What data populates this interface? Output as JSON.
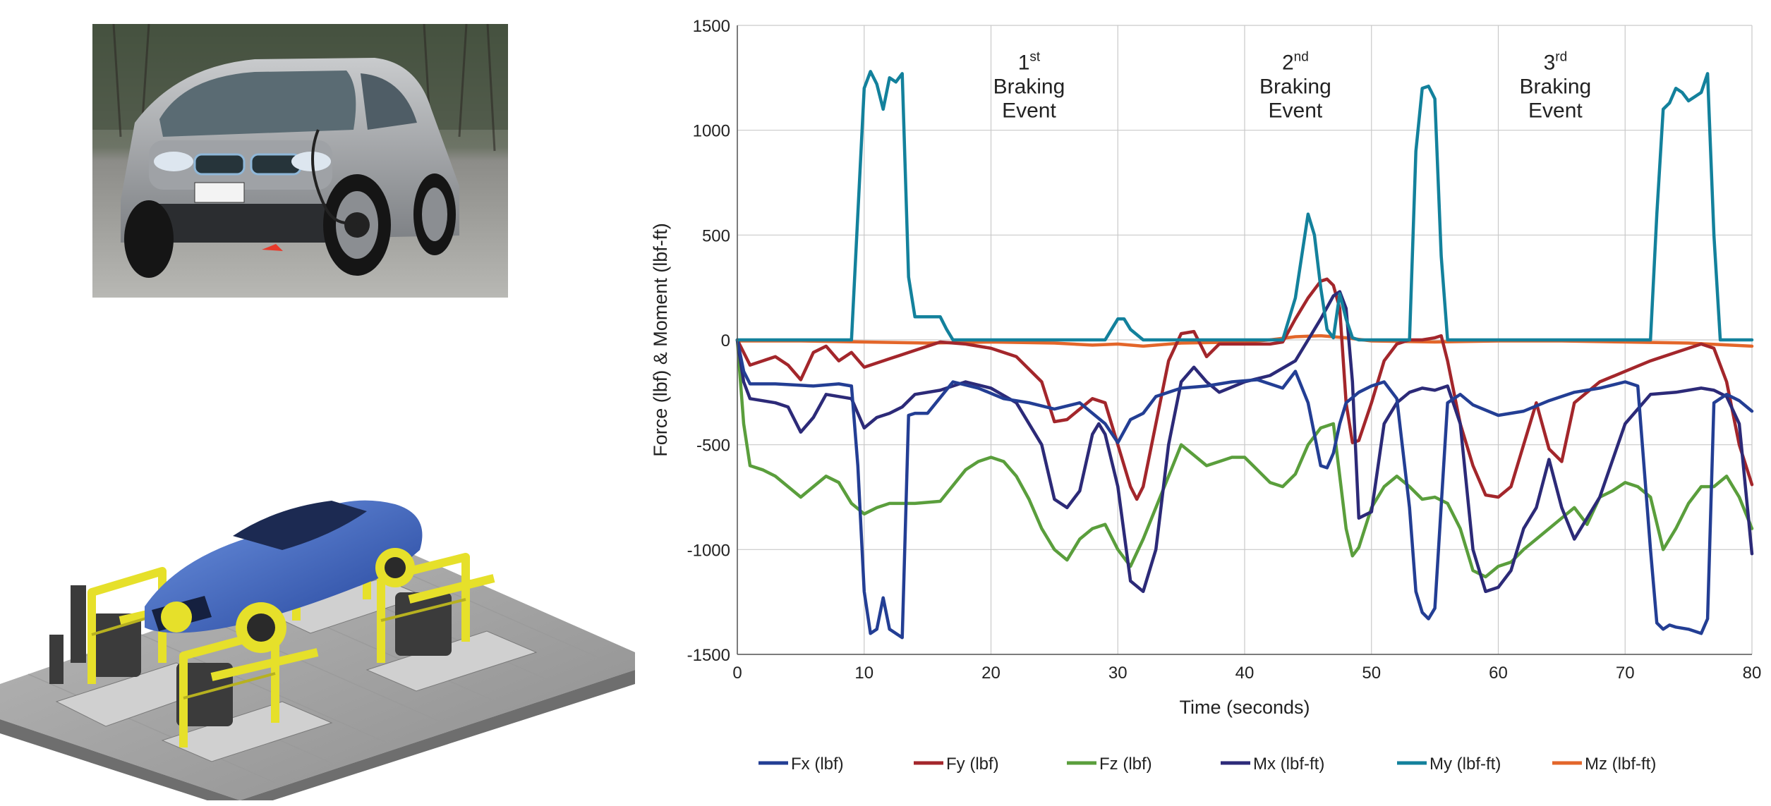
{
  "chart_data": {
    "type": "line",
    "title": "",
    "xlabel": "Time (seconds)",
    "ylabel": "Force (lbf) & Moment (lbf-ft)",
    "xlim": [
      0,
      80
    ],
    "ylim": [
      -1500,
      1500
    ],
    "x_ticks": [
      "0",
      "10",
      "20",
      "30",
      "40",
      "50",
      "60",
      "70",
      "80"
    ],
    "y_ticks": [
      "1500",
      "1000",
      "500",
      "0",
      "-500",
      "-1000",
      "-1500"
    ],
    "grid": true,
    "legend_position": "bottom",
    "annotations": [
      {
        "ordinal": "1",
        "sup": "st",
        "line2": "Braking",
        "line3": "Event",
        "x": 23,
        "y": 1250
      },
      {
        "ordinal": "2",
        "sup": "nd",
        "line2": "Braking",
        "line3": "Event",
        "x": 44,
        "y": 1250
      },
      {
        "ordinal": "3",
        "sup": "rd",
        "line2": "Braking",
        "line3": "Event",
        "x": 64.5,
        "y": 1250
      }
    ],
    "series": [
      {
        "name": "Fx (lbf)",
        "color": "#233e94",
        "x": [
          0,
          0.5,
          1,
          3,
          6,
          8,
          9,
          9.5,
          10,
          10.5,
          11,
          11.5,
          12,
          12.5,
          13,
          13.5,
          14,
          15,
          17,
          19,
          21,
          23,
          25,
          27,
          29,
          30,
          31,
          32,
          33,
          35,
          37,
          39,
          41,
          43,
          44,
          45,
          46,
          46.5,
          47,
          47.5,
          48,
          49,
          50,
          51,
          52,
          53,
          53.5,
          54,
          54.5,
          55,
          56,
          57,
          58,
          60,
          62,
          64,
          66,
          68,
          70,
          71,
          72,
          72.5,
          73,
          73.5,
          74,
          75,
          76,
          76.5,
          77,
          77.5,
          78,
          79,
          80
        ],
        "y": [
          0,
          -150,
          -210,
          -210,
          -220,
          -210,
          -220,
          -600,
          -1200,
          -1400,
          -1380,
          -1230,
          -1380,
          -1400,
          -1420,
          -360,
          -350,
          -350,
          -200,
          -230,
          -280,
          -300,
          -330,
          -300,
          -400,
          -490,
          -380,
          -350,
          -270,
          -230,
          -220,
          -200,
          -190,
          -230,
          -150,
          -300,
          -600,
          -610,
          -540,
          -400,
          -300,
          -250,
          -220,
          -200,
          -280,
          -800,
          -1200,
          -1300,
          -1330,
          -1280,
          -300,
          -260,
          -310,
          -360,
          -340,
          -290,
          -250,
          -230,
          -200,
          -220,
          -1000,
          -1350,
          -1380,
          -1360,
          -1370,
          -1380,
          -1400,
          -1330,
          -300,
          -280,
          -260,
          -290,
          -340
        ]
      },
      {
        "name": "Fy (lbf)",
        "color": "#a3262b",
        "x": [
          0,
          1,
          2,
          3,
          4,
          5,
          6,
          7,
          8,
          9,
          10,
          12,
          14,
          16,
          18,
          20,
          22,
          24,
          25,
          26,
          27,
          28,
          29,
          30,
          31,
          31.5,
          32,
          33,
          34,
          35,
          36,
          37,
          38,
          40,
          42,
          43,
          44,
          45,
          46,
          46.5,
          47,
          47.5,
          48,
          48.5,
          49,
          50,
          51,
          52,
          53,
          54,
          55,
          55.5,
          56,
          57,
          58,
          59,
          60,
          61,
          62,
          63,
          64,
          65,
          66,
          68,
          70,
          72,
          74,
          76,
          77,
          78,
          79,
          80
        ],
        "y": [
          0,
          -120,
          -100,
          -80,
          -120,
          -190,
          -60,
          -30,
          -100,
          -60,
          -130,
          -90,
          -50,
          -10,
          -20,
          -40,
          -80,
          -200,
          -390,
          -380,
          -330,
          -280,
          -300,
          -500,
          -700,
          -760,
          -700,
          -400,
          -100,
          30,
          40,
          -80,
          -20,
          -20,
          -20,
          -10,
          100,
          200,
          280,
          290,
          260,
          150,
          -300,
          -490,
          -480,
          -300,
          -100,
          -20,
          0,
          0,
          10,
          20,
          -100,
          -400,
          -600,
          -740,
          -750,
          -700,
          -500,
          -300,
          -520,
          -580,
          -300,
          -200,
          -150,
          -100,
          -60,
          -20,
          -40,
          -200,
          -500,
          -690
        ]
      },
      {
        "name": "Fz (lbf)",
        "color": "#5a9e3c",
        "x": [
          0,
          0.5,
          1,
          2,
          3,
          4,
          5,
          6,
          7,
          8,
          9,
          10,
          11,
          12,
          14,
          16,
          18,
          19,
          20,
          21,
          22,
          23,
          24,
          25,
          26,
          27,
          28,
          29,
          30,
          31,
          32,
          33,
          34,
          35,
          36,
          37,
          38,
          39,
          40,
          41,
          42,
          43,
          44,
          45,
          46,
          47,
          48,
          48.5,
          49,
          50,
          51,
          52,
          53,
          54,
          55,
          56,
          57,
          58,
          59,
          60,
          61,
          62,
          63,
          64,
          65,
          66,
          67,
          68,
          69,
          70,
          71,
          72,
          73,
          74,
          75,
          76,
          77,
          78,
          79,
          80
        ],
        "y": [
          0,
          -400,
          -600,
          -620,
          -650,
          -700,
          -750,
          -700,
          -650,
          -680,
          -780,
          -830,
          -800,
          -780,
          -780,
          -770,
          -620,
          -580,
          -560,
          -580,
          -650,
          -760,
          -900,
          -1000,
          -1050,
          -950,
          -900,
          -880,
          -1000,
          -1080,
          -950,
          -800,
          -650,
          -500,
          -550,
          -600,
          -580,
          -560,
          -560,
          -620,
          -680,
          -700,
          -640,
          -500,
          -420,
          -400,
          -900,
          -1030,
          -990,
          -800,
          -700,
          -650,
          -700,
          -760,
          -750,
          -780,
          -900,
          -1100,
          -1130,
          -1080,
          -1060,
          -1000,
          -950,
          -900,
          -850,
          -800,
          -880,
          -750,
          -720,
          -680,
          -700,
          -750,
          -1000,
          -900,
          -780,
          -700,
          -700,
          -650,
          -750,
          -900
        ]
      },
      {
        "name": "Mx (lbf-ft)",
        "color": "#2c2a78",
        "x": [
          0,
          0.5,
          1,
          3,
          4,
          5,
          6,
          7,
          8,
          9,
          10,
          11,
          12,
          13,
          14,
          16,
          17,
          18,
          20,
          22,
          24,
          25,
          26,
          27,
          28,
          28.5,
          29,
          30,
          31,
          32,
          33,
          34,
          35,
          36,
          37,
          38,
          40,
          42,
          44,
          45,
          46,
          47,
          47.5,
          48,
          48.5,
          49,
          50,
          51,
          52,
          53,
          54,
          55,
          56,
          57,
          58,
          59,
          60,
          61,
          62,
          63,
          64,
          65,
          66,
          68,
          70,
          72,
          74,
          76,
          77,
          78,
          79,
          80
        ],
        "y": [
          0,
          -200,
          -280,
          -300,
          -320,
          -440,
          -370,
          -260,
          -270,
          -280,
          -420,
          -370,
          -350,
          -320,
          -260,
          -240,
          -220,
          -200,
          -230,
          -300,
          -500,
          -760,
          -800,
          -720,
          -450,
          -400,
          -450,
          -700,
          -1150,
          -1200,
          -1000,
          -500,
          -200,
          -130,
          -200,
          -250,
          -200,
          -170,
          -100,
          0,
          100,
          210,
          230,
          150,
          -200,
          -850,
          -820,
          -400,
          -300,
          -250,
          -230,
          -240,
          -220,
          -400,
          -1000,
          -1200,
          -1180,
          -1100,
          -900,
          -800,
          -570,
          -800,
          -950,
          -750,
          -400,
          -260,
          -250,
          -230,
          -240,
          -270,
          -400,
          -1020
        ]
      },
      {
        "name": "My (lbf-ft)",
        "color": "#13819c",
        "x": [
          0,
          8,
          9,
          9.5,
          10,
          10.5,
          11,
          11.5,
          12,
          12.5,
          13,
          13.5,
          14,
          15,
          16,
          16.5,
          17,
          18,
          20,
          25,
          29,
          29.5,
          30,
          30.5,
          31,
          32,
          33,
          35,
          40,
          42,
          43,
          44,
          44.5,
          45,
          45.5,
          46,
          46.5,
          47,
          47.5,
          48,
          48.5,
          49,
          50,
          52,
          53,
          53.5,
          54,
          54.5,
          55,
          55.5,
          56,
          57,
          60,
          65,
          70,
          72,
          72.5,
          73,
          73.5,
          74,
          74.5,
          75,
          75.5,
          76,
          76.5,
          77,
          77.5,
          78,
          79,
          80
        ],
        "y": [
          0,
          0,
          0,
          600,
          1200,
          1280,
          1220,
          1100,
          1250,
          1230,
          1270,
          300,
          110,
          110,
          110,
          50,
          0,
          0,
          0,
          0,
          0,
          50,
          100,
          100,
          50,
          0,
          0,
          0,
          0,
          0,
          0,
          200,
          400,
          600,
          500,
          250,
          50,
          10,
          220,
          100,
          10,
          0,
          0,
          0,
          0,
          900,
          1200,
          1210,
          1150,
          400,
          0,
          0,
          0,
          0,
          0,
          0,
          600,
          1100,
          1130,
          1200,
          1180,
          1140,
          1160,
          1180,
          1270,
          500,
          0,
          0,
          0,
          0
        ]
      },
      {
        "name": "Mz (lbf-ft)",
        "color": "#e3662a",
        "x": [
          0,
          5,
          10,
          15,
          20,
          25,
          28,
          30,
          32,
          35,
          40,
          42,
          44,
          46,
          48,
          50,
          55,
          60,
          65,
          70,
          75,
          80
        ],
        "y": [
          -5,
          -5,
          -10,
          -15,
          -10,
          -15,
          -25,
          -20,
          -30,
          -15,
          -10,
          0,
          15,
          20,
          10,
          -5,
          -10,
          -5,
          -5,
          -10,
          -15,
          -30
        ]
      }
    ]
  }
}
